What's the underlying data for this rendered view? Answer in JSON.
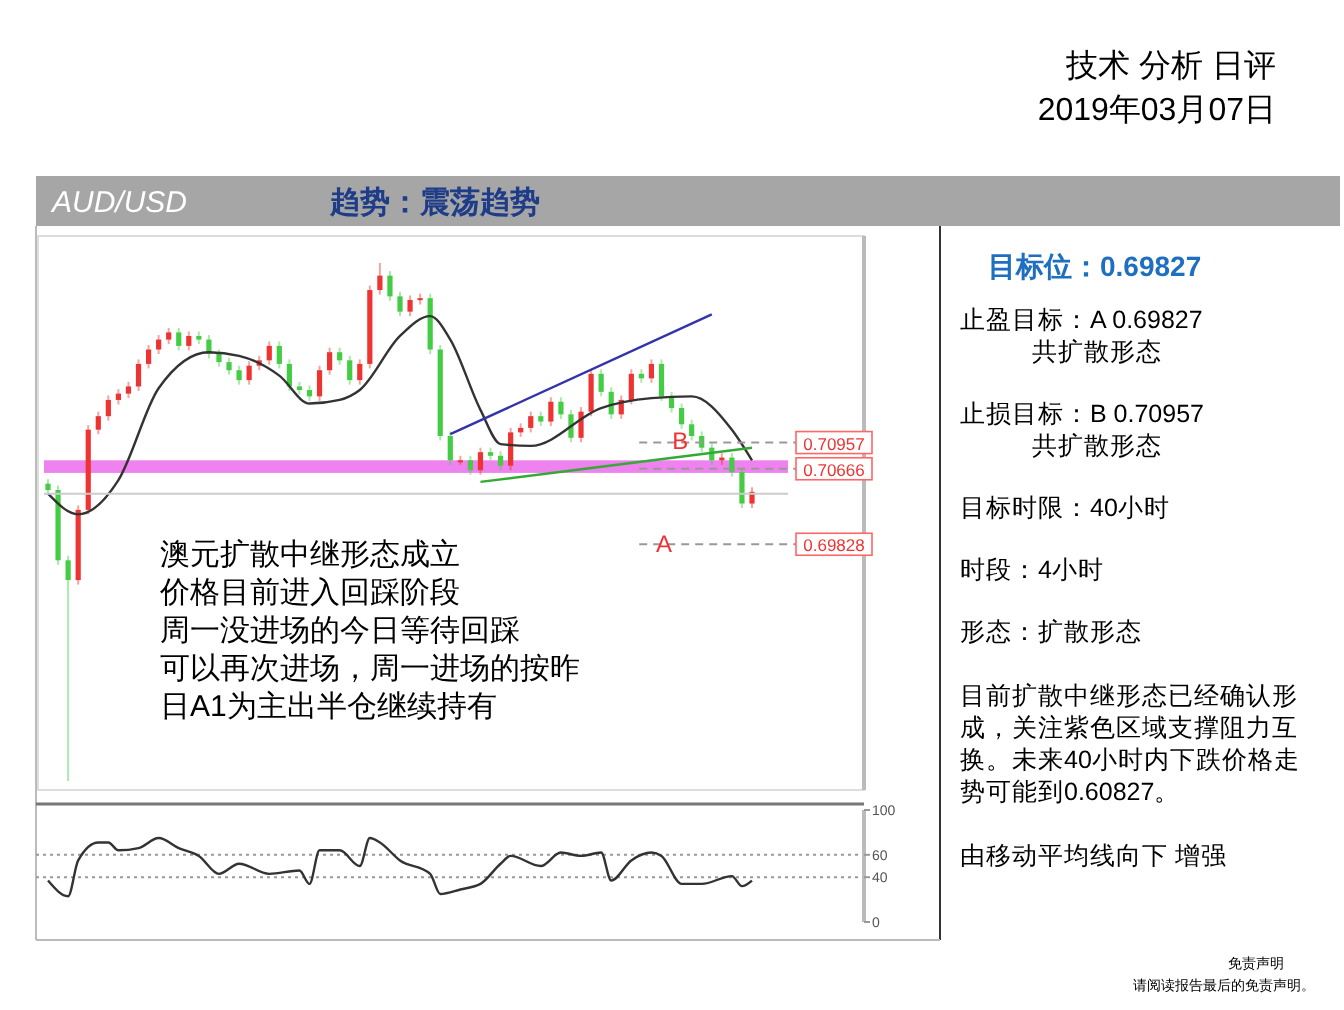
{
  "chart_data": [
    {
      "type": "candlestick",
      "categories": [
        null,
        null,
        null,
        null,
        null,
        null,
        null,
        null,
        null,
        null,
        null,
        null,
        null,
        null,
        null,
        null,
        null,
        null,
        null,
        null,
        null,
        null,
        null,
        null,
        null,
        null,
        null,
        null,
        null,
        null,
        null,
        null,
        null,
        null,
        null,
        null,
        null,
        null,
        null,
        null,
        null,
        null,
        null,
        null,
        null,
        null,
        null,
        null,
        null,
        null,
        null,
        null,
        null,
        null,
        null,
        null,
        null,
        null,
        null,
        null,
        null,
        null,
        null,
        null,
        null,
        null,
        null,
        null,
        null,
        null,
        null
      ],
      "ohlc": [
        [
          0.705,
          0.7055,
          0.7038,
          0.7043
        ],
        [
          0.7043,
          0.7048,
          0.696,
          0.6965
        ],
        [
          0.6965,
          0.697,
          0.672,
          0.6943
        ],
        [
          0.6943,
          0.7026,
          0.6938,
          0.7021
        ],
        [
          0.7021,
          0.7115,
          0.7016,
          0.711
        ],
        [
          0.711,
          0.713,
          0.7105,
          0.7125
        ],
        [
          0.7125,
          0.7148,
          0.712,
          0.7143
        ],
        [
          0.7143,
          0.7155,
          0.7138,
          0.715
        ],
        [
          0.715,
          0.7163,
          0.7145,
          0.7158
        ],
        [
          0.7158,
          0.7188,
          0.7153,
          0.7183
        ],
        [
          0.7183,
          0.7204,
          0.7178,
          0.7199
        ],
        [
          0.7199,
          0.7215,
          0.7194,
          0.721
        ],
        [
          0.721,
          0.7223,
          0.7205,
          0.7218
        ],
        [
          0.7218,
          0.7223,
          0.7198,
          0.7203
        ],
        [
          0.7203,
          0.7219,
          0.7198,
          0.7214
        ],
        [
          0.7214,
          0.7219,
          0.7205,
          0.721
        ],
        [
          0.721,
          0.7215,
          0.7189,
          0.7194
        ],
        [
          0.7194,
          0.7199,
          0.718,
          0.7185
        ],
        [
          0.7185,
          0.719,
          0.7171,
          0.7176
        ],
        [
          0.7176,
          0.7181,
          0.716,
          0.7165
        ],
        [
          0.7165,
          0.7186,
          0.716,
          0.7181
        ],
        [
          0.7181,
          0.7192,
          0.7176,
          0.7187
        ],
        [
          0.7187,
          0.7208,
          0.7182,
          0.7203
        ],
        [
          0.7203,
          0.7208,
          0.7178,
          0.7183
        ],
        [
          0.7183,
          0.7188,
          0.7153,
          0.7158
        ],
        [
          0.7158,
          0.7163,
          0.7149,
          0.7154
        ],
        [
          0.7154,
          0.7159,
          0.7142,
          0.7147
        ],
        [
          0.7147,
          0.7181,
          0.7142,
          0.7176
        ],
        [
          0.7176,
          0.7201,
          0.7171,
          0.7196
        ],
        [
          0.7196,
          0.7201,
          0.7182,
          0.7187
        ],
        [
          0.7187,
          0.7192,
          0.716,
          0.7165
        ],
        [
          0.7165,
          0.7188,
          0.716,
          0.7183
        ],
        [
          0.7183,
          0.727,
          0.7178,
          0.7265
        ],
        [
          0.7265,
          0.7295,
          0.726,
          0.7281
        ],
        [
          0.7281,
          0.7286,
          0.7253,
          0.7258
        ],
        [
          0.7258,
          0.7263,
          0.7236,
          0.7241
        ],
        [
          0.7241,
          0.7259,
          0.7236,
          0.7254
        ],
        [
          0.7254,
          0.7261,
          0.7249,
          0.7256
        ],
        [
          0.7256,
          0.7261,
          0.7194,
          0.7199
        ],
        [
          0.7199,
          0.7204,
          0.7098,
          0.7103
        ],
        [
          0.7103,
          0.7108,
          0.7071,
          0.7076
        ],
        [
          0.7076,
          0.7081,
          0.7071,
          0.7076
        ],
        [
          0.7076,
          0.7081,
          0.706,
          0.7065
        ],
        [
          0.7065,
          0.709,
          0.706,
          0.7085
        ],
        [
          0.7085,
          0.709,
          0.7076,
          0.7081
        ],
        [
          0.7081,
          0.7086,
          0.7065,
          0.707
        ],
        [
          0.707,
          0.7112,
          0.7065,
          0.7107
        ],
        [
          0.7107,
          0.7117,
          0.7102,
          0.7112
        ],
        [
          0.7112,
          0.713,
          0.7107,
          0.7125
        ],
        [
          0.7125,
          0.713,
          0.7114,
          0.7119
        ],
        [
          0.7119,
          0.7146,
          0.7114,
          0.7141
        ],
        [
          0.7141,
          0.7146,
          0.7122,
          0.7127
        ],
        [
          0.7127,
          0.7132,
          0.7096,
          0.7101
        ],
        [
          0.7101,
          0.7135,
          0.7096,
          0.713
        ],
        [
          0.713,
          0.7177,
          0.7125,
          0.7172
        ],
        [
          0.7172,
          0.7177,
          0.7147,
          0.7152
        ],
        [
          0.7152,
          0.7157,
          0.7122,
          0.7127
        ],
        [
          0.7127,
          0.7148,
          0.7122,
          0.7143
        ],
        [
          0.7143,
          0.7177,
          0.7138,
          0.7172
        ],
        [
          0.7172,
          0.7177,
          0.7162,
          0.7167
        ],
        [
          0.7167,
          0.7188,
          0.7162,
          0.7183
        ],
        [
          0.7183,
          0.7188,
          0.7142,
          0.7147
        ],
        [
          0.7147,
          0.7152,
          0.7129,
          0.7134
        ],
        [
          0.7134,
          0.7139,
          0.7111,
          0.7116
        ],
        [
          0.7116,
          0.7121,
          0.7098,
          0.7103
        ],
        [
          0.7103,
          0.7108,
          0.7085,
          0.709
        ],
        [
          0.709,
          0.7095,
          0.7071,
          0.7076
        ],
        [
          0.7076,
          0.7084,
          0.7071,
          0.7079
        ],
        [
          0.7079,
          0.7084,
          0.7058,
          0.7063
        ],
        [
          0.7063,
          0.7068,
          0.7023,
          0.7028
        ],
        [
          0.7028,
          0.7046,
          0.7023,
          0.7041
        ]
      ],
      "colors": [
        "#44cc44",
        "#44cc44",
        "#44cc44",
        "#ee3333",
        "#ee3333",
        "#ee3333",
        "#ee3333",
        "#ee3333",
        "#ee3333",
        "#ee3333",
        "#ee3333",
        "#ee3333",
        "#ee3333",
        "#44cc44",
        "#ee3333",
        "#44cc44",
        "#44cc44",
        "#44cc44",
        "#44cc44",
        "#44cc44",
        "#ee3333",
        "#ee3333",
        "#ee3333",
        "#44cc44",
        "#44cc44",
        "#44cc44",
        "#44cc44",
        "#ee3333",
        "#ee3333",
        "#44cc44",
        "#44cc44",
        "#ee3333",
        "#ee3333",
        "#ee3333",
        "#44cc44",
        "#44cc44",
        "#ee3333",
        "#ee3333",
        "#44cc44",
        "#44cc44",
        "#44cc44",
        "#ee3333",
        "#44cc44",
        "#ee3333",
        "#44cc44",
        "#44cc44",
        "#ee3333",
        "#ee3333",
        "#ee3333",
        "#44cc44",
        "#ee3333",
        "#44cc44",
        "#44cc44",
        "#ee3333",
        "#ee3333",
        "#44cc44",
        "#44cc44",
        "#ee3333",
        "#ee3333",
        "#44cc44",
        "#ee3333",
        "#44cc44",
        "#44cc44",
        "#44cc44",
        "#44cc44",
        "#44cc44",
        "#44cc44",
        "#ee3333",
        "#44cc44",
        "#44cc44",
        "#ee3333"
      ],
      "series": [
        {
          "type": "line",
          "color": "#333333",
          "values": [
            0.7039,
            null,
            null,
            0.7016,
            null,
            null,
            null,
            0.7054,
            null,
            null,
            null,
            0.7156,
            null,
            null,
            null,
            null,
            0.7196,
            null,
            null,
            0.7192,
            null,
            null,
            null,
            0.717,
            null,
            null,
            0.7139,
            null,
            null,
            0.7143,
            null,
            0.7154,
            null,
            null,
            null,
            0.7214,
            null,
            null,
            0.7236,
            null,
            0.721,
            null,
            null,
            0.7132,
            null,
            0.7094,
            null,
            null,
            0.7092,
            null,
            null,
            null,
            null,
            null,
            null,
            0.7134,
            null,
            null,
            null,
            null,
            0.7145,
            null,
            null,
            null,
            0.7147,
            null,
            null,
            null,
            0.711,
            null,
            0.7076
          ]
        },
        {
          "type": "line",
          "color": "#3333aa",
          "values": [
            null,
            null,
            null,
            null,
            null,
            null,
            null,
            null,
            null,
            null,
            null,
            null,
            null,
            null,
            null,
            null,
            null,
            null,
            null,
            null,
            null,
            null,
            null,
            null,
            null,
            null,
            null,
            null,
            null,
            null,
            null,
            null,
            null,
            null,
            null,
            null,
            null,
            null,
            null,
            null,
            0.7105,
            null,
            null,
            null,
            null,
            null,
            null,
            null,
            null,
            null,
            null,
            null,
            null,
            null,
            null,
            null,
            null,
            null,
            null,
            null,
            null,
            null,
            null,
            null,
            null,
            null,
            0.7238,
            null,
            null,
            null,
            null
          ]
        },
        {
          "type": "line",
          "color": "#33aa33",
          "values": [
            null,
            null,
            null,
            null,
            null,
            null,
            null,
            null,
            null,
            null,
            null,
            null,
            null,
            null,
            null,
            null,
            null,
            null,
            null,
            null,
            null,
            null,
            null,
            null,
            null,
            null,
            null,
            null,
            null,
            null,
            null,
            null,
            null,
            null,
            null,
            null,
            null,
            null,
            null,
            null,
            null,
            null,
            null,
            0.7052,
            null,
            null,
            null,
            null,
            null,
            null,
            null,
            null,
            null,
            null,
            null,
            null,
            null,
            null,
            null,
            null,
            null,
            null,
            null,
            null,
            null,
            null,
            null,
            null,
            null,
            null,
            0.709
          ]
        }
      ],
      "ylim": [
        0.671,
        0.7325
      ],
      "yticks": [
        0.69828,
        0.70666,
        0.70957
      ],
      "bands": [
        {
          "axis": "y",
          "from": 0.7062,
          "to": 0.7076,
          "color": "#ee82ee"
        }
      ],
      "ref_lines": [
        {
          "axis": "y",
          "value": 0.7039,
          "color": "#cccccc",
          "line_style": "solid"
        },
        {
          "axis": "y",
          "value": 0.70957,
          "color": "#999999",
          "line_style": "dashed"
        },
        {
          "axis": "y",
          "value": 0.70666,
          "color": "#999999",
          "line_style": "dashed"
        },
        {
          "axis": "y",
          "value": 0.69828,
          "color": "#999999",
          "line_style": "dashed"
        }
      ],
      "annotations": [
        "AUD/USD",
        "趋势：震荡趋势",
        "澳元扩散中继形态成立",
        "价格目前进入回踩阶段",
        "周一没进场的今日等待回踩",
        "可以再次进场，周一进场的按昨",
        "日A1为主出半仓继续持有",
        {
          "text": "B",
          "y": 0.71
        },
        {
          "text": "A",
          "y": 0.6985
        }
      ]
    },
    {
      "type": "line",
      "categories": [
        null,
        null,
        null,
        null,
        null,
        null,
        null,
        null,
        null,
        null,
        null,
        null,
        null,
        null,
        null,
        null,
        null,
        null,
        null,
        null,
        null,
        null,
        null,
        null,
        null,
        null,
        null,
        null,
        null,
        null,
        null,
        null,
        null,
        null,
        null,
        null,
        null,
        null,
        null,
        null,
        null,
        null,
        null,
        null,
        null,
        null,
        null,
        null,
        null,
        null,
        null,
        null,
        null,
        null,
        null,
        null,
        null,
        null,
        null,
        null,
        null,
        null,
        null,
        null,
        null,
        null,
        null,
        null,
        null,
        null,
        null
      ],
      "series": [
        {
          "color": "#333333",
          "values": [
            37,
            null,
            23,
            55,
            null,
            71,
            71,
            64,
            null,
            66,
            null,
            75,
            null,
            66,
            null,
            59,
            null,
            43,
            null,
            52,
            null,
            null,
            43,
            null,
            null,
            46,
            34,
            64,
            null,
            64,
            null,
            50,
            75,
            71,
            null,
            55,
            null,
            null,
            43,
            25,
            null,
            29,
            null,
            34,
            null,
            52,
            59,
            null,
            null,
            50,
            null,
            62,
            null,
            59,
            null,
            62,
            37,
            null,
            55,
            null,
            62,
            59,
            null,
            34,
            null,
            34,
            null,
            null,
            41,
            32,
            37
          ]
        }
      ],
      "ylim": [
        0,
        100
      ],
      "yticks": [
        0,
        40,
        60,
        100
      ],
      "ref_lines": [
        {
          "axis": "y",
          "value": 40,
          "color": "#999999",
          "line_style": "dotted"
        },
        {
          "axis": "y",
          "value": 60,
          "color": "#999999",
          "line_style": "dotted"
        }
      ]
    },
    {
      "type": "other",
      "title": "目标位：0.69827",
      "annotations": [
        "止盈目标：A 0.69827",
        "共扩散形态",
        "止损目标：B 0.70957",
        "共扩散形态",
        "目标时限：40小时",
        "时段：4小时",
        "形态：扩散形态",
        "目前扩散中继形态已经确认形成，关注紫色区域支撑阻力互换。未来40小时内下跌价格走势可能到0.60827。",
        "由移动平均线向下 增强",
        "免责声明",
        "请阅读报告最后的免责声明。",
        "技术 分析 日评",
        "2019年03月07日"
      ]
    }
  ]
}
